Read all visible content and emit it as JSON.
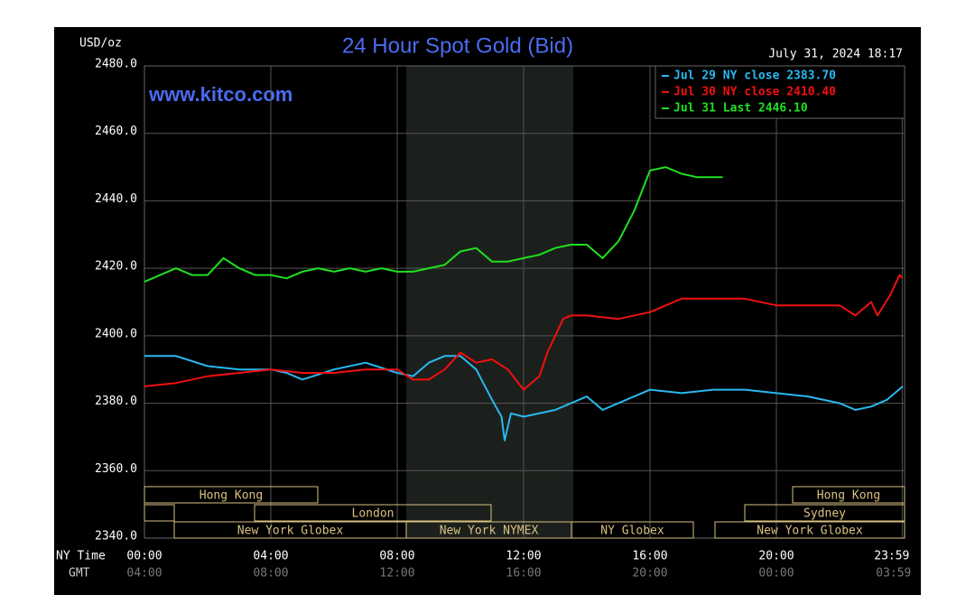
{
  "chart_data": {
    "type": "line",
    "title": "24 Hour Spot Gold (Bid)",
    "subtitle": "July 31, 2024 18:17",
    "watermark": "www.kitco.com",
    "y_label": "USD/oz",
    "x_label": "NY Time",
    "x2_label": "GMT",
    "xlim": [
      0,
      24
    ],
    "xticks": [
      {
        "value": 0,
        "label": "00:00"
      },
      {
        "value": 4,
        "label": "04:00"
      },
      {
        "value": 8,
        "label": "08:00"
      },
      {
        "value": 12,
        "label": "12:00"
      },
      {
        "value": 16,
        "label": "16:00"
      },
      {
        "value": 20,
        "label": "20:00"
      },
      {
        "value": 23.983,
        "label": "23:59"
      }
    ],
    "gmt_labels": [
      "04:00",
      "08:00",
      "12:00",
      "16:00",
      "20:00",
      "00:00",
      "03:59"
    ],
    "ylim": [
      2340,
      2480
    ],
    "yticks": [
      {
        "value": 2340,
        "label": "2340.0"
      },
      {
        "value": 2360,
        "label": "2360.0"
      },
      {
        "value": 2380,
        "label": "2380.0"
      },
      {
        "value": 2400,
        "label": "2400.0"
      },
      {
        "value": 2420,
        "label": "2420.0"
      },
      {
        "value": 2440,
        "label": "2440.0"
      },
      {
        "value": 2460,
        "label": "2460.0"
      },
      {
        "value": 2480,
        "label": "2480.0"
      }
    ],
    "grid": true,
    "sessions": [
      "Hong Kong",
      "London",
      "New York Globex",
      "New York NYMEX",
      "NY Globex",
      "Sydney",
      "Hong Kong",
      "New York Globex"
    ],
    "series": [
      {
        "name": "Jul 29 NY close 2383.70",
        "color": "#29b8f0",
        "x": [
          0,
          1,
          2,
          3,
          4,
          4.5,
          5,
          6,
          7,
          8,
          8.5,
          9,
          9.5,
          10,
          10.5,
          11,
          11.3,
          11.4,
          11.6,
          12,
          13,
          13.5,
          14,
          14.5,
          15,
          16,
          17,
          18,
          19,
          20,
          21,
          22,
          22.5,
          23,
          23.5,
          24
        ],
        "values": [
          2394,
          2394,
          2391,
          2390,
          2390,
          2389,
          2387,
          2390,
          2392,
          2389,
          2388,
          2392,
          2394,
          2394,
          2390,
          2381,
          2376,
          2369,
          2377,
          2376,
          2378,
          2380,
          2382,
          2378,
          2380,
          2384,
          2383,
          2384,
          2384,
          2383,
          2382,
          2380,
          2378,
          2379,
          2381,
          2385
        ]
      },
      {
        "name": "Jul 30 NY close 2410.40",
        "color": "#f01010",
        "x": [
          0,
          1,
          2,
          3,
          4,
          5,
          6,
          7,
          8,
          8.5,
          9,
          9.5,
          10,
          10.5,
          11,
          11.5,
          12,
          12.5,
          12.75,
          13.25,
          13.5,
          14,
          15,
          16,
          17,
          18,
          19,
          20,
          21,
          22,
          22.5,
          23,
          23.2,
          23.6,
          23.9,
          24
        ],
        "values": [
          2385,
          2386,
          2388,
          2389,
          2390,
          2389,
          2389,
          2390,
          2390,
          2387,
          2387,
          2390,
          2395,
          2392,
          2393,
          2390,
          2384,
          2388,
          2395,
          2405,
          2406,
          2406,
          2405,
          2407,
          2411,
          2411,
          2411,
          2409,
          2409,
          2409,
          2406,
          2410,
          2406,
          2412,
          2418,
          2417
        ]
      },
      {
        "name": "Jul 31 Last 2446.10",
        "color": "#20e020",
        "x": [
          0,
          0.5,
          1,
          1.5,
          2,
          2.5,
          3,
          3.5,
          4,
          4.5,
          5,
          5.5,
          6,
          6.5,
          7,
          7.5,
          8,
          8.5,
          9,
          9.5,
          10,
          10.5,
          11,
          11.5,
          12,
          12.5,
          13,
          13.5,
          14,
          14.5,
          15,
          15.5,
          16,
          16.5,
          17,
          17.5,
          18,
          18.3
        ],
        "values": [
          2416,
          2418,
          2420,
          2418,
          2418,
          2423,
          2420,
          2418,
          2418,
          2417,
          2419,
          2420,
          2419,
          2420,
          2419,
          2420,
          2419,
          2419,
          2420,
          2421,
          2425,
          2426,
          2422,
          2422,
          2423,
          2424,
          2426,
          2427,
          2427,
          2423,
          2428,
          2437,
          2449,
          2450,
          2448,
          2447,
          2447,
          2447
        ]
      }
    ]
  }
}
